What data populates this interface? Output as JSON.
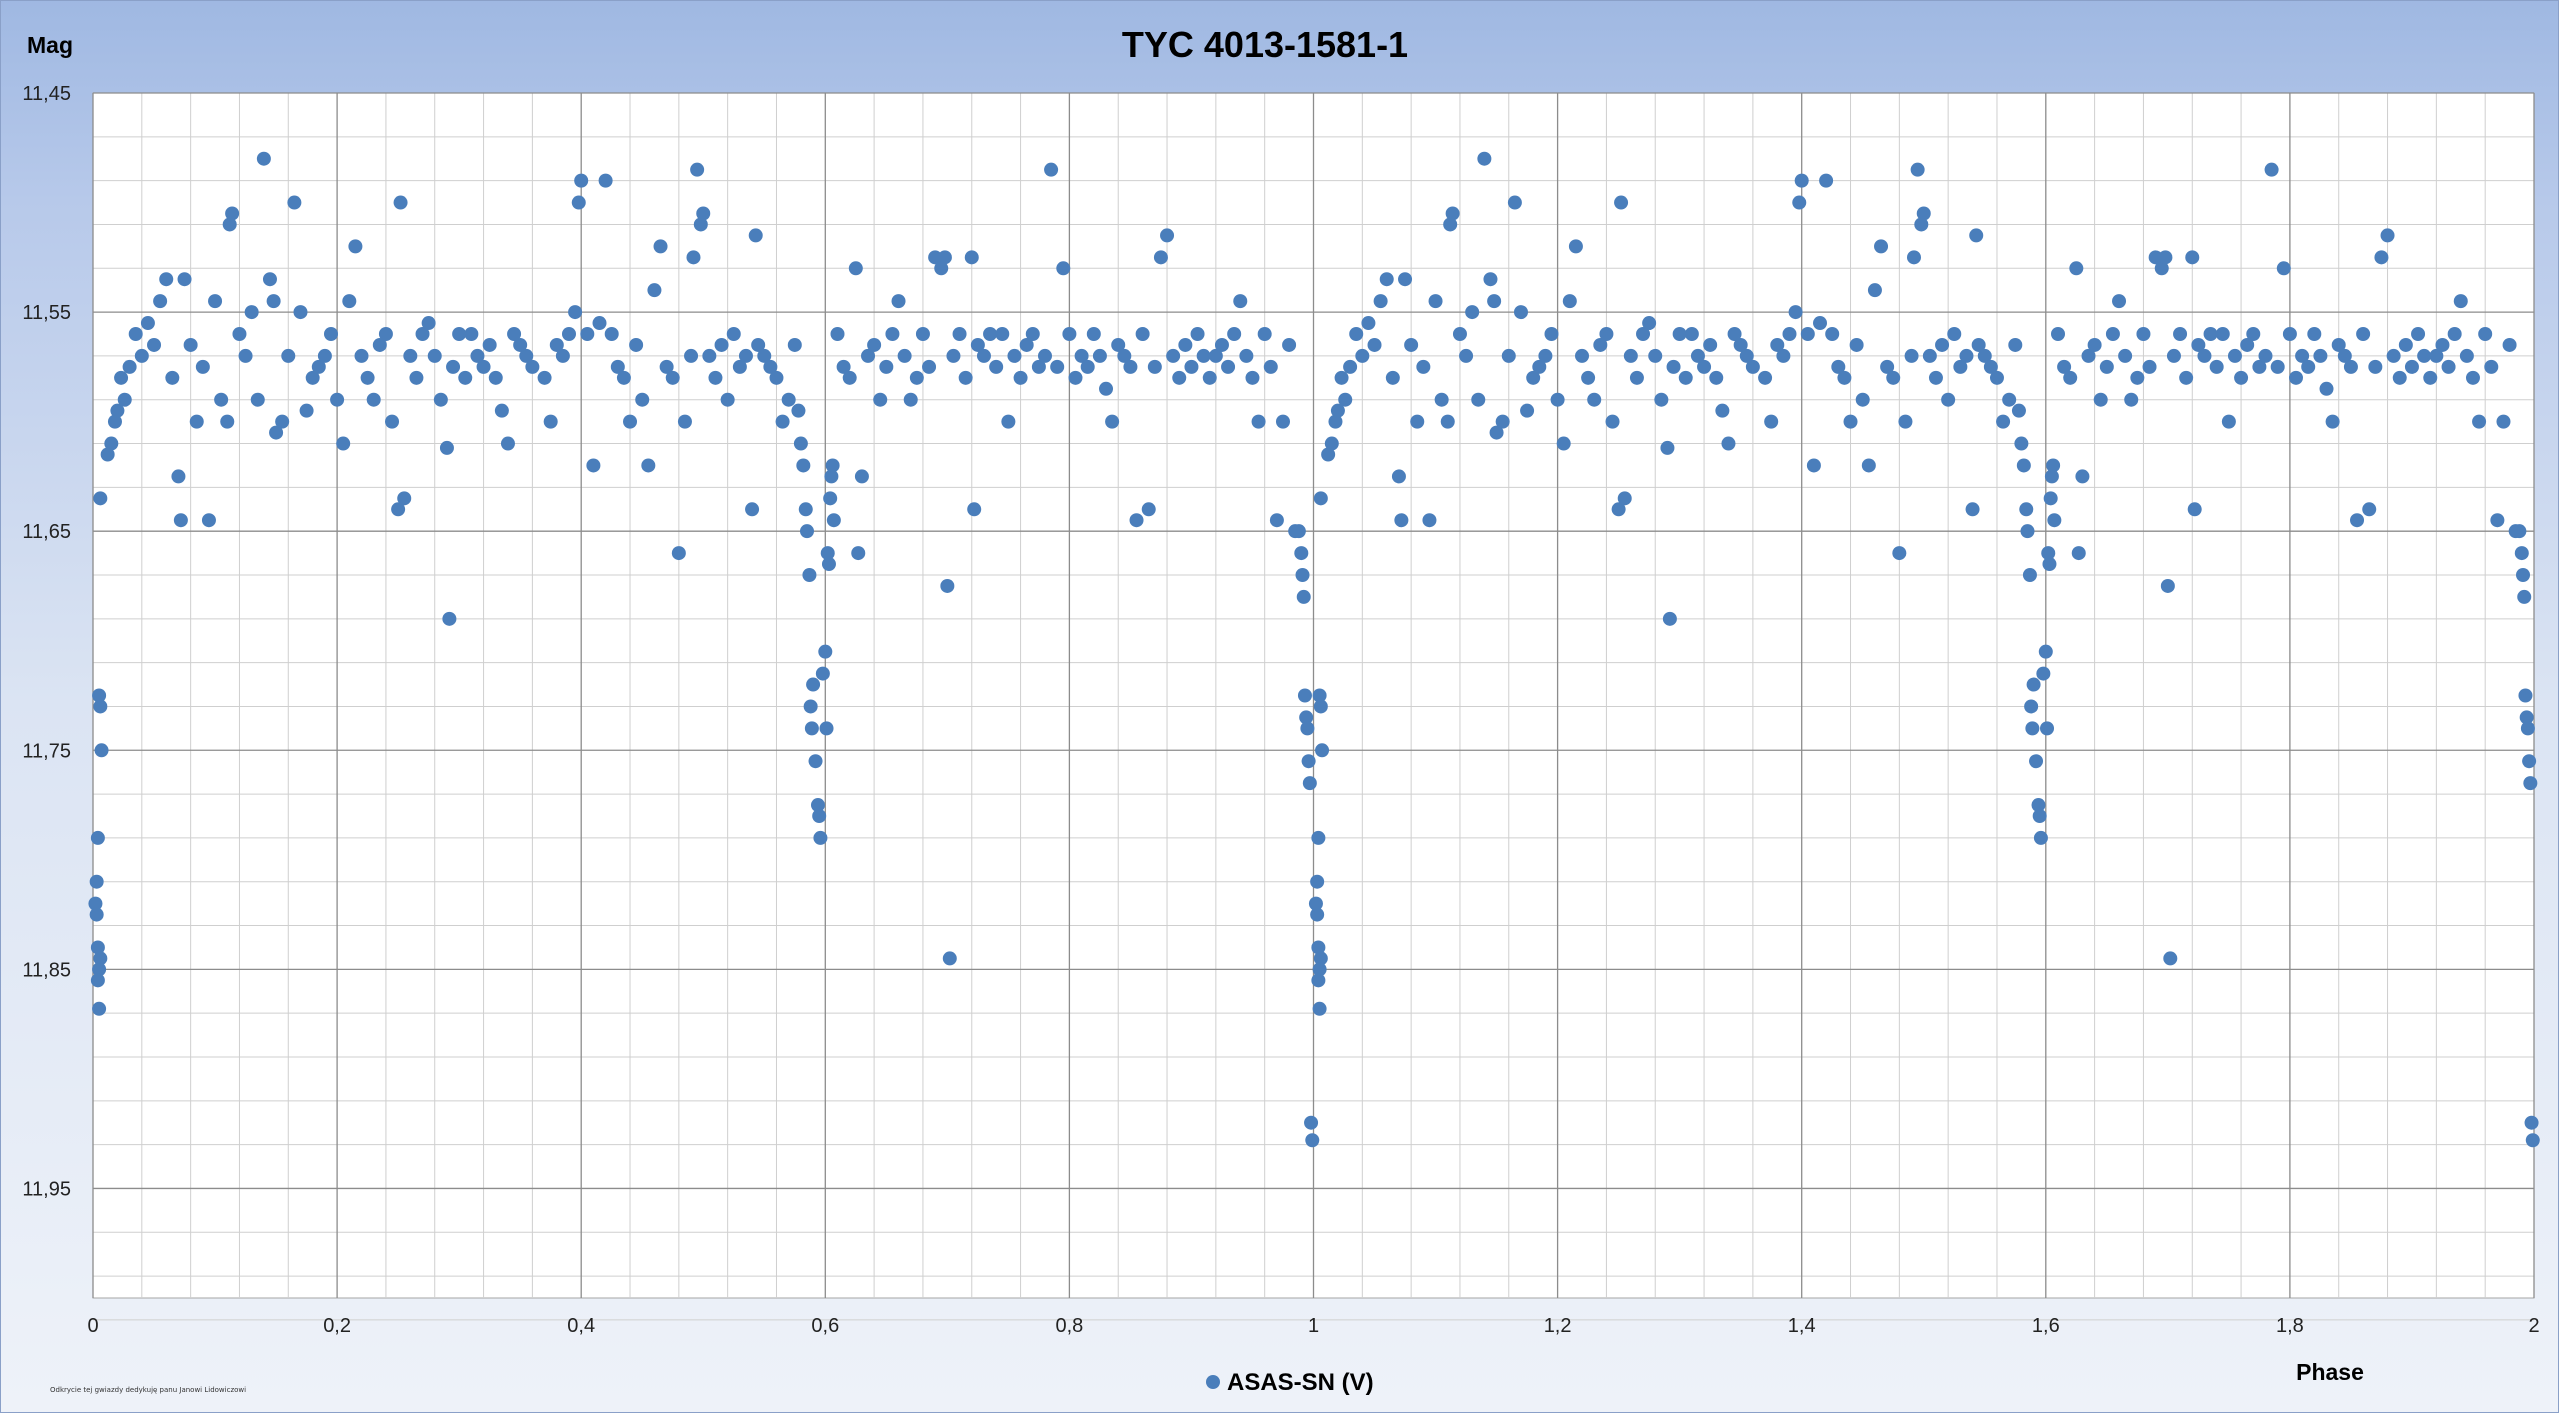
{
  "chart_data": {
    "type": "scatter",
    "title": "TYC 4013-1581-1",
    "xlabel": "Phase",
    "ylabel": "Mag",
    "xlim": [
      0,
      2
    ],
    "ylim": [
      11.45,
      12.0
    ],
    "y_inverted": true,
    "x_ticks": [
      "0",
      "0,2",
      "0,4",
      "0,6",
      "0,8",
      "1",
      "1,2",
      "1,4",
      "1,6",
      "1,8",
      "2"
    ],
    "y_ticks": [
      "11,45",
      "11,55",
      "11,65",
      "11,75",
      "11,85",
      "11,95"
    ],
    "grid": true,
    "legend_position": "bottom",
    "credit_text": "Odkrycie tej gwiazdy dedykuję panu Janowi Lidowiczowi",
    "series": [
      {
        "name": "ASAS-SN (V)",
        "color": "#4a7ebb",
        "points": [
          [
            0.005,
            11.725
          ],
          [
            0.006,
            11.73
          ],
          [
            0.007,
            11.75
          ],
          [
            0.004,
            11.79
          ],
          [
            0.003,
            11.81
          ],
          [
            0.002,
            11.82
          ],
          [
            0.003,
            11.825
          ],
          [
            0.004,
            11.84
          ],
          [
            0.006,
            11.845
          ],
          [
            0.005,
            11.85
          ],
          [
            0.004,
            11.855
          ],
          [
            0.005,
            11.868
          ],
          [
            0.006,
            11.635
          ],
          [
            0.012,
            11.615
          ],
          [
            0.015,
            11.61
          ],
          [
            0.018,
            11.6
          ],
          [
            0.02,
            11.595
          ],
          [
            0.023,
            11.58
          ],
          [
            0.026,
            11.59
          ],
          [
            0.03,
            11.575
          ],
          [
            0.035,
            11.56
          ],
          [
            0.04,
            11.57
          ],
          [
            0.045,
            11.555
          ],
          [
            0.05,
            11.565
          ],
          [
            0.055,
            11.545
          ],
          [
            0.06,
            11.535
          ],
          [
            0.065,
            11.58
          ],
          [
            0.07,
            11.625
          ],
          [
            0.072,
            11.645
          ],
          [
            0.075,
            11.535
          ],
          [
            0.08,
            11.565
          ],
          [
            0.085,
            11.6
          ],
          [
            0.09,
            11.575
          ],
          [
            0.095,
            11.645
          ],
          [
            0.1,
            11.545
          ],
          [
            0.105,
            11.59
          ],
          [
            0.11,
            11.6
          ],
          [
            0.112,
            11.51
          ],
          [
            0.114,
            11.505
          ],
          [
            0.12,
            11.56
          ],
          [
            0.125,
            11.57
          ],
          [
            0.13,
            11.55
          ],
          [
            0.135,
            11.59
          ],
          [
            0.14,
            11.48
          ],
          [
            0.145,
            11.535
          ],
          [
            0.148,
            11.545
          ],
          [
            0.15,
            11.605
          ],
          [
            0.155,
            11.6
          ],
          [
            0.16,
            11.57
          ],
          [
            0.165,
            11.5
          ],
          [
            0.17,
            11.55
          ],
          [
            0.175,
            11.595
          ],
          [
            0.18,
            11.58
          ],
          [
            0.185,
            11.575
          ],
          [
            0.19,
            11.57
          ],
          [
            0.195,
            11.56
          ],
          [
            0.2,
            11.59
          ],
          [
            0.205,
            11.61
          ],
          [
            0.21,
            11.545
          ],
          [
            0.215,
            11.52
          ],
          [
            0.22,
            11.57
          ],
          [
            0.225,
            11.58
          ],
          [
            0.23,
            11.59
          ],
          [
            0.235,
            11.565
          ],
          [
            0.24,
            11.56
          ],
          [
            0.245,
            11.6
          ],
          [
            0.25,
            11.64
          ],
          [
            0.252,
            11.5
          ],
          [
            0.255,
            11.635
          ],
          [
            0.26,
            11.57
          ],
          [
            0.265,
            11.58
          ],
          [
            0.27,
            11.56
          ],
          [
            0.275,
            11.555
          ],
          [
            0.28,
            11.57
          ],
          [
            0.285,
            11.59
          ],
          [
            0.29,
            11.612
          ],
          [
            0.292,
            11.69
          ],
          [
            0.295,
            11.575
          ],
          [
            0.3,
            11.56
          ],
          [
            0.305,
            11.58
          ],
          [
            0.31,
            11.56
          ],
          [
            0.315,
            11.57
          ],
          [
            0.32,
            11.575
          ],
          [
            0.325,
            11.565
          ],
          [
            0.33,
            11.58
          ],
          [
            0.335,
            11.595
          ],
          [
            0.34,
            11.61
          ],
          [
            0.345,
            11.56
          ],
          [
            0.35,
            11.565
          ],
          [
            0.355,
            11.57
          ],
          [
            0.36,
            11.575
          ],
          [
            0.37,
            11.58
          ],
          [
            0.375,
            11.6
          ],
          [
            0.38,
            11.565
          ],
          [
            0.385,
            11.57
          ],
          [
            0.39,
            11.56
          ],
          [
            0.395,
            11.55
          ],
          [
            0.398,
            11.5
          ],
          [
            0.4,
            11.49
          ],
          [
            0.405,
            11.56
          ],
          [
            0.41,
            11.62
          ],
          [
            0.415,
            11.555
          ],
          [
            0.42,
            11.49
          ],
          [
            0.425,
            11.56
          ],
          [
            0.43,
            11.575
          ],
          [
            0.435,
            11.58
          ],
          [
            0.44,
            11.6
          ],
          [
            0.445,
            11.565
          ],
          [
            0.45,
            11.59
          ],
          [
            0.455,
            11.62
          ],
          [
            0.46,
            11.54
          ],
          [
            0.465,
            11.52
          ],
          [
            0.47,
            11.575
          ],
          [
            0.475,
            11.58
          ],
          [
            0.48,
            11.66
          ],
          [
            0.485,
            11.6
          ],
          [
            0.49,
            11.57
          ],
          [
            0.492,
            11.525
          ],
          [
            0.495,
            11.485
          ],
          [
            0.498,
            11.51
          ],
          [
            0.5,
            11.505
          ],
          [
            0.505,
            11.57
          ],
          [
            0.51,
            11.58
          ],
          [
            0.515,
            11.565
          ],
          [
            0.52,
            11.59
          ],
          [
            0.525,
            11.56
          ],
          [
            0.53,
            11.575
          ],
          [
            0.535,
            11.57
          ],
          [
            0.54,
            11.64
          ],
          [
            0.543,
            11.515
          ],
          [
            0.545,
            11.565
          ],
          [
            0.55,
            11.57
          ],
          [
            0.555,
            11.575
          ],
          [
            0.56,
            11.58
          ],
          [
            0.565,
            11.6
          ],
          [
            0.57,
            11.59
          ],
          [
            0.575,
            11.565
          ],
          [
            0.578,
            11.595
          ],
          [
            0.58,
            11.61
          ],
          [
            0.582,
            11.62
          ],
          [
            0.584,
            11.64
          ],
          [
            0.585,
            11.65
          ],
          [
            0.587,
            11.67
          ],
          [
            0.588,
            11.73
          ],
          [
            0.589,
            11.74
          ],
          [
            0.59,
            11.72
          ],
          [
            0.592,
            11.755
          ],
          [
            0.594,
            11.775
          ],
          [
            0.595,
            11.78
          ],
          [
            0.596,
            11.79
          ],
          [
            0.598,
            11.715
          ],
          [
            0.6,
            11.705
          ],
          [
            0.601,
            11.74
          ],
          [
            0.602,
            11.66
          ],
          [
            0.603,
            11.665
          ],
          [
            0.604,
            11.635
          ],
          [
            0.605,
            11.625
          ],
          [
            0.606,
            11.62
          ],
          [
            0.607,
            11.645
          ],
          [
            0.61,
            11.56
          ],
          [
            0.615,
            11.575
          ],
          [
            0.62,
            11.58
          ],
          [
            0.625,
            11.53
          ],
          [
            0.627,
            11.66
          ],
          [
            0.63,
            11.625
          ],
          [
            0.635,
            11.57
          ],
          [
            0.64,
            11.565
          ],
          [
            0.645,
            11.59
          ],
          [
            0.65,
            11.575
          ],
          [
            0.655,
            11.56
          ],
          [
            0.66,
            11.545
          ],
          [
            0.665,
            11.57
          ],
          [
            0.67,
            11.59
          ],
          [
            0.675,
            11.58
          ],
          [
            0.68,
            11.56
          ],
          [
            0.685,
            11.575
          ],
          [
            0.69,
            11.525
          ],
          [
            0.695,
            11.53
          ],
          [
            0.698,
            11.525
          ],
          [
            0.7,
            11.675
          ],
          [
            0.702,
            11.845
          ],
          [
            0.705,
            11.57
          ],
          [
            0.71,
            11.56
          ],
          [
            0.715,
            11.58
          ],
          [
            0.72,
            11.525
          ],
          [
            0.722,
            11.64
          ],
          [
            0.725,
            11.565
          ],
          [
            0.73,
            11.57
          ],
          [
            0.735,
            11.56
          ],
          [
            0.74,
            11.575
          ],
          [
            0.745,
            11.56
          ],
          [
            0.75,
            11.6
          ],
          [
            0.755,
            11.57
          ],
          [
            0.76,
            11.58
          ],
          [
            0.765,
            11.565
          ],
          [
            0.77,
            11.56
          ],
          [
            0.775,
            11.575
          ],
          [
            0.78,
            11.57
          ],
          [
            0.785,
            11.485
          ],
          [
            0.79,
            11.575
          ],
          [
            0.795,
            11.53
          ],
          [
            0.8,
            11.56
          ],
          [
            0.805,
            11.58
          ],
          [
            0.81,
            11.57
          ],
          [
            0.815,
            11.575
          ],
          [
            0.82,
            11.56
          ],
          [
            0.825,
            11.57
          ],
          [
            0.83,
            11.585
          ],
          [
            0.835,
            11.6
          ],
          [
            0.84,
            11.565
          ],
          [
            0.845,
            11.57
          ],
          [
            0.85,
            11.575
          ],
          [
            0.855,
            11.645
          ],
          [
            0.86,
            11.56
          ],
          [
            0.865,
            11.64
          ],
          [
            0.87,
            11.575
          ],
          [
            0.875,
            11.525
          ],
          [
            0.88,
            11.515
          ],
          [
            0.885,
            11.57
          ],
          [
            0.89,
            11.58
          ],
          [
            0.895,
            11.565
          ],
          [
            0.9,
            11.575
          ],
          [
            0.905,
            11.56
          ],
          [
            0.91,
            11.57
          ],
          [
            0.915,
            11.58
          ],
          [
            0.92,
            11.57
          ],
          [
            0.925,
            11.565
          ],
          [
            0.93,
            11.575
          ],
          [
            0.935,
            11.56
          ],
          [
            0.94,
            11.545
          ],
          [
            0.945,
            11.57
          ],
          [
            0.95,
            11.58
          ],
          [
            0.955,
            11.6
          ],
          [
            0.96,
            11.56
          ],
          [
            0.965,
            11.575
          ],
          [
            0.97,
            11.645
          ],
          [
            0.975,
            11.6
          ],
          [
            0.98,
            11.565
          ],
          [
            0.985,
            11.65
          ],
          [
            0.988,
            11.65
          ],
          [
            0.99,
            11.66
          ],
          [
            0.991,
            11.67
          ],
          [
            0.992,
            11.68
          ],
          [
            0.993,
            11.725
          ],
          [
            0.994,
            11.735
          ],
          [
            0.995,
            11.74
          ],
          [
            0.996,
            11.755
          ],
          [
            0.997,
            11.765
          ],
          [
            0.998,
            11.92
          ],
          [
            0.999,
            11.928
          ]
        ]
      }
    ]
  }
}
